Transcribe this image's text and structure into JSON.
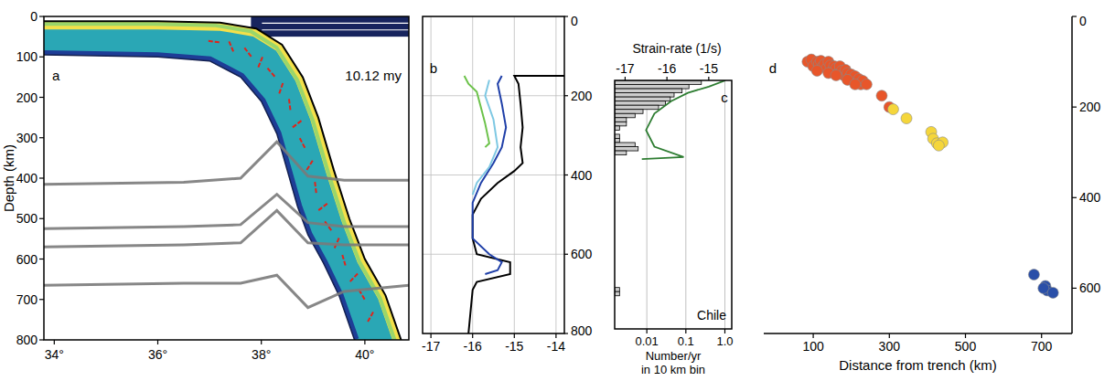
{
  "chart_data": [
    {
      "type": "section",
      "panel": "a",
      "annotation": "10.12 my",
      "ylabel": "Depth (km)",
      "xlim": [
        33.8,
        40.85
      ],
      "ylim": [
        0,
        800
      ],
      "xticks": [
        {
          "value": 34,
          "label": "34°"
        },
        {
          "value": 36,
          "label": "36°"
        },
        {
          "value": 38,
          "label": "38°"
        },
        {
          "value": 40,
          "label": "40°"
        }
      ],
      "yticks": [
        0,
        100,
        200,
        300,
        400,
        500,
        600,
        700,
        800
      ],
      "slab": {
        "lon_upper": [
          33.8,
          36.0,
          37.2,
          37.9,
          38.4,
          38.8,
          39.1,
          39.4,
          39.7,
          40.0,
          40.4,
          40.7
        ],
        "depth_upper": [
          12,
          12,
          15,
          30,
          70,
          150,
          250,
          380,
          500,
          600,
          690,
          800
        ],
        "lon_lower": [
          33.8,
          36.0,
          37.0,
          37.6,
          38.0,
          38.3,
          38.5,
          38.7,
          38.9,
          39.2,
          39.5,
          39.8
        ],
        "depth_lower": [
          95,
          100,
          110,
          150,
          210,
          290,
          380,
          470,
          540,
          610,
          690,
          800
        ]
      },
      "overriding_plate": {
        "lon": [
          37.8,
          40.85
        ],
        "depth": [
          0,
          50
        ]
      },
      "phase_boundaries": {
        "color": "#7a7a7a",
        "lon": [
          33.8,
          36.5,
          37.6,
          38.3,
          38.9,
          39.6,
          40.85
        ],
        "depths": [
          [
            415,
            410,
            400,
            310,
            395,
            405,
            405
          ],
          [
            525,
            520,
            515,
            440,
            510,
            520,
            520
          ],
          [
            570,
            565,
            560,
            480,
            560,
            565,
            565
          ],
          [
            665,
            660,
            660,
            640,
            720,
            680,
            665
          ]
        ]
      }
    },
    {
      "type": "line",
      "panel": "b",
      "xlim": [
        -17.2,
        -13.8
      ],
      "ylim": [
        0,
        800
      ],
      "xticks": [
        -17,
        -16,
        -15,
        -14
      ],
      "yticks": [
        0,
        200,
        400,
        600,
        800
      ],
      "grid": true,
      "series": [
        {
          "color": "#000000",
          "x": [
            -13.8,
            -15.0,
            -14.9,
            -14.85,
            -14.8,
            -14.85,
            -14.8,
            -15.0,
            -15.4,
            -15.8,
            -16.0,
            -16.0,
            -15.9,
            -15.1,
            -15.1,
            -15.9,
            -16.0,
            -16.1
          ],
          "values": [
            150,
            150,
            170,
            220,
            280,
            330,
            370,
            390,
            420,
            460,
            500,
            560,
            600,
            620,
            650,
            670,
            690,
            800
          ]
        },
        {
          "color": "#1f3fa8",
          "x": [
            -15.3,
            -15.4,
            -15.3,
            -15.2,
            -15.3,
            -15.5,
            -15.8,
            -16.0,
            -16.0,
            -15.6,
            -15.3,
            -15.4,
            -15.7
          ],
          "values": [
            150,
            170,
            220,
            280,
            330,
            370,
            420,
            470,
            560,
            600,
            620,
            640,
            650
          ]
        },
        {
          "color": "#7ec8e3",
          "x": [
            -15.6,
            -15.7,
            -15.5,
            -15.4,
            -15.6,
            -15.9,
            -16.0
          ],
          "values": [
            160,
            200,
            260,
            330,
            380,
            420,
            450
          ]
        },
        {
          "color": "#6cc24a",
          "x": [
            -16.2,
            -16.1,
            -15.9,
            -15.8,
            -15.7,
            -15.6,
            -15.7
          ],
          "values": [
            150,
            170,
            190,
            230,
            270,
            320,
            330
          ]
        }
      ]
    },
    {
      "type": "histogram",
      "panel": "c",
      "annotation": "Chile",
      "log": "x",
      "grid": true,
      "tick_labels": "x",
      "xlabel": [
        "Number/yr",
        "in 10 km bin"
      ],
      "xlim": [
        0.0015,
        1.5
      ],
      "xticks": [
        0.01,
        0.1,
        {
          "value": 1,
          "label": "1.0"
        }
      ],
      "ylim": [
        100,
        700
      ],
      "color": "#cccccc",
      "bins": [
        100,
        110,
        120,
        130,
        140,
        150,
        160,
        170,
        180,
        190,
        200,
        210,
        220,
        230,
        240,
        250,
        260,
        270,
        280,
        290,
        300,
        310,
        320,
        330,
        340,
        350,
        360,
        370,
        380,
        390,
        400,
        410,
        420,
        430,
        440,
        450,
        460,
        470,
        480,
        490,
        500,
        510,
        520,
        530,
        540,
        550,
        560,
        570,
        580,
        590,
        600,
        610,
        620,
        630,
        640,
        650,
        660,
        670,
        680,
        690,
        700
      ],
      "counts": [
        0.25,
        0.12,
        0.08,
        0.05,
        0.04,
        0.03,
        0.02,
        0.008,
        0.005,
        0.003,
        0.003,
        0.002,
        0,
        0.002,
        0.002,
        0.005,
        0.006,
        0.003,
        0,
        0,
        0,
        0,
        0,
        0,
        0,
        0,
        0,
        0,
        0,
        0,
        0,
        0,
        0,
        0,
        0,
        0,
        0,
        0,
        0,
        0,
        0,
        0,
        0,
        0,
        0,
        0,
        0,
        0,
        0,
        0,
        0.002,
        0.002,
        0,
        0,
        0,
        0,
        0,
        0,
        0,
        0
      ],
      "x2label": "Strain-rate (1/s)",
      "x2lim": [
        -17.25,
        -14.45
      ],
      "x2ticks": [
        -17,
        -16,
        -15
      ],
      "series": [
        {
          "color": "#2e7d32",
          "axis": "x2",
          "x": [
            -14.6,
            -15.0,
            -15.5,
            -15.9,
            -16.3,
            -16.5,
            -16.3,
            -15.6,
            -16.6
          ],
          "values": [
            100,
            115,
            130,
            150,
            180,
            220,
            260,
            285,
            290
          ]
        }
      ]
    },
    {
      "type": "scatter",
      "panel": "d",
      "xlabel": "Distance from trench (km)",
      "xlim": [
        -30,
        780
      ],
      "ylim": [
        0,
        700
      ],
      "xticks": [
        100,
        300,
        500,
        700
      ],
      "yticks": [
        0,
        200,
        400,
        600
      ],
      "series": [
        {
          "color": "#e8562a",
          "marker": "circle",
          "x": [
            85,
            95,
            100,
            110,
            115,
            120,
            125,
            130,
            135,
            140,
            145,
            150,
            155,
            160,
            165,
            170,
            175,
            180,
            185,
            190,
            195,
            200,
            205,
            210,
            215,
            220,
            225,
            230,
            240,
            110,
            140,
            160,
            190,
            210,
            280,
            300
          ],
          "values": [
            100,
            95,
            110,
            100,
            105,
            98,
            110,
            105,
            115,
            100,
            108,
            120,
            110,
            115,
            125,
            110,
            120,
            130,
            118,
            125,
            135,
            128,
            140,
            132,
            145,
            138,
            150,
            142,
            150,
            120,
            125,
            130,
            140,
            150,
            175,
            200
          ]
        },
        {
          "color": "#f5d63b",
          "marker": "circle",
          "x": [
            310,
            345,
            410,
            415,
            425,
            440,
            430
          ],
          "values": [
            205,
            225,
            255,
            270,
            280,
            278,
            285
          ]
        },
        {
          "color": "#2a4fa8",
          "marker": "circle",
          "x": [
            680,
            710,
            715,
            705,
            730
          ],
          "values": [
            570,
            595,
            605,
            600,
            610
          ]
        }
      ]
    }
  ]
}
